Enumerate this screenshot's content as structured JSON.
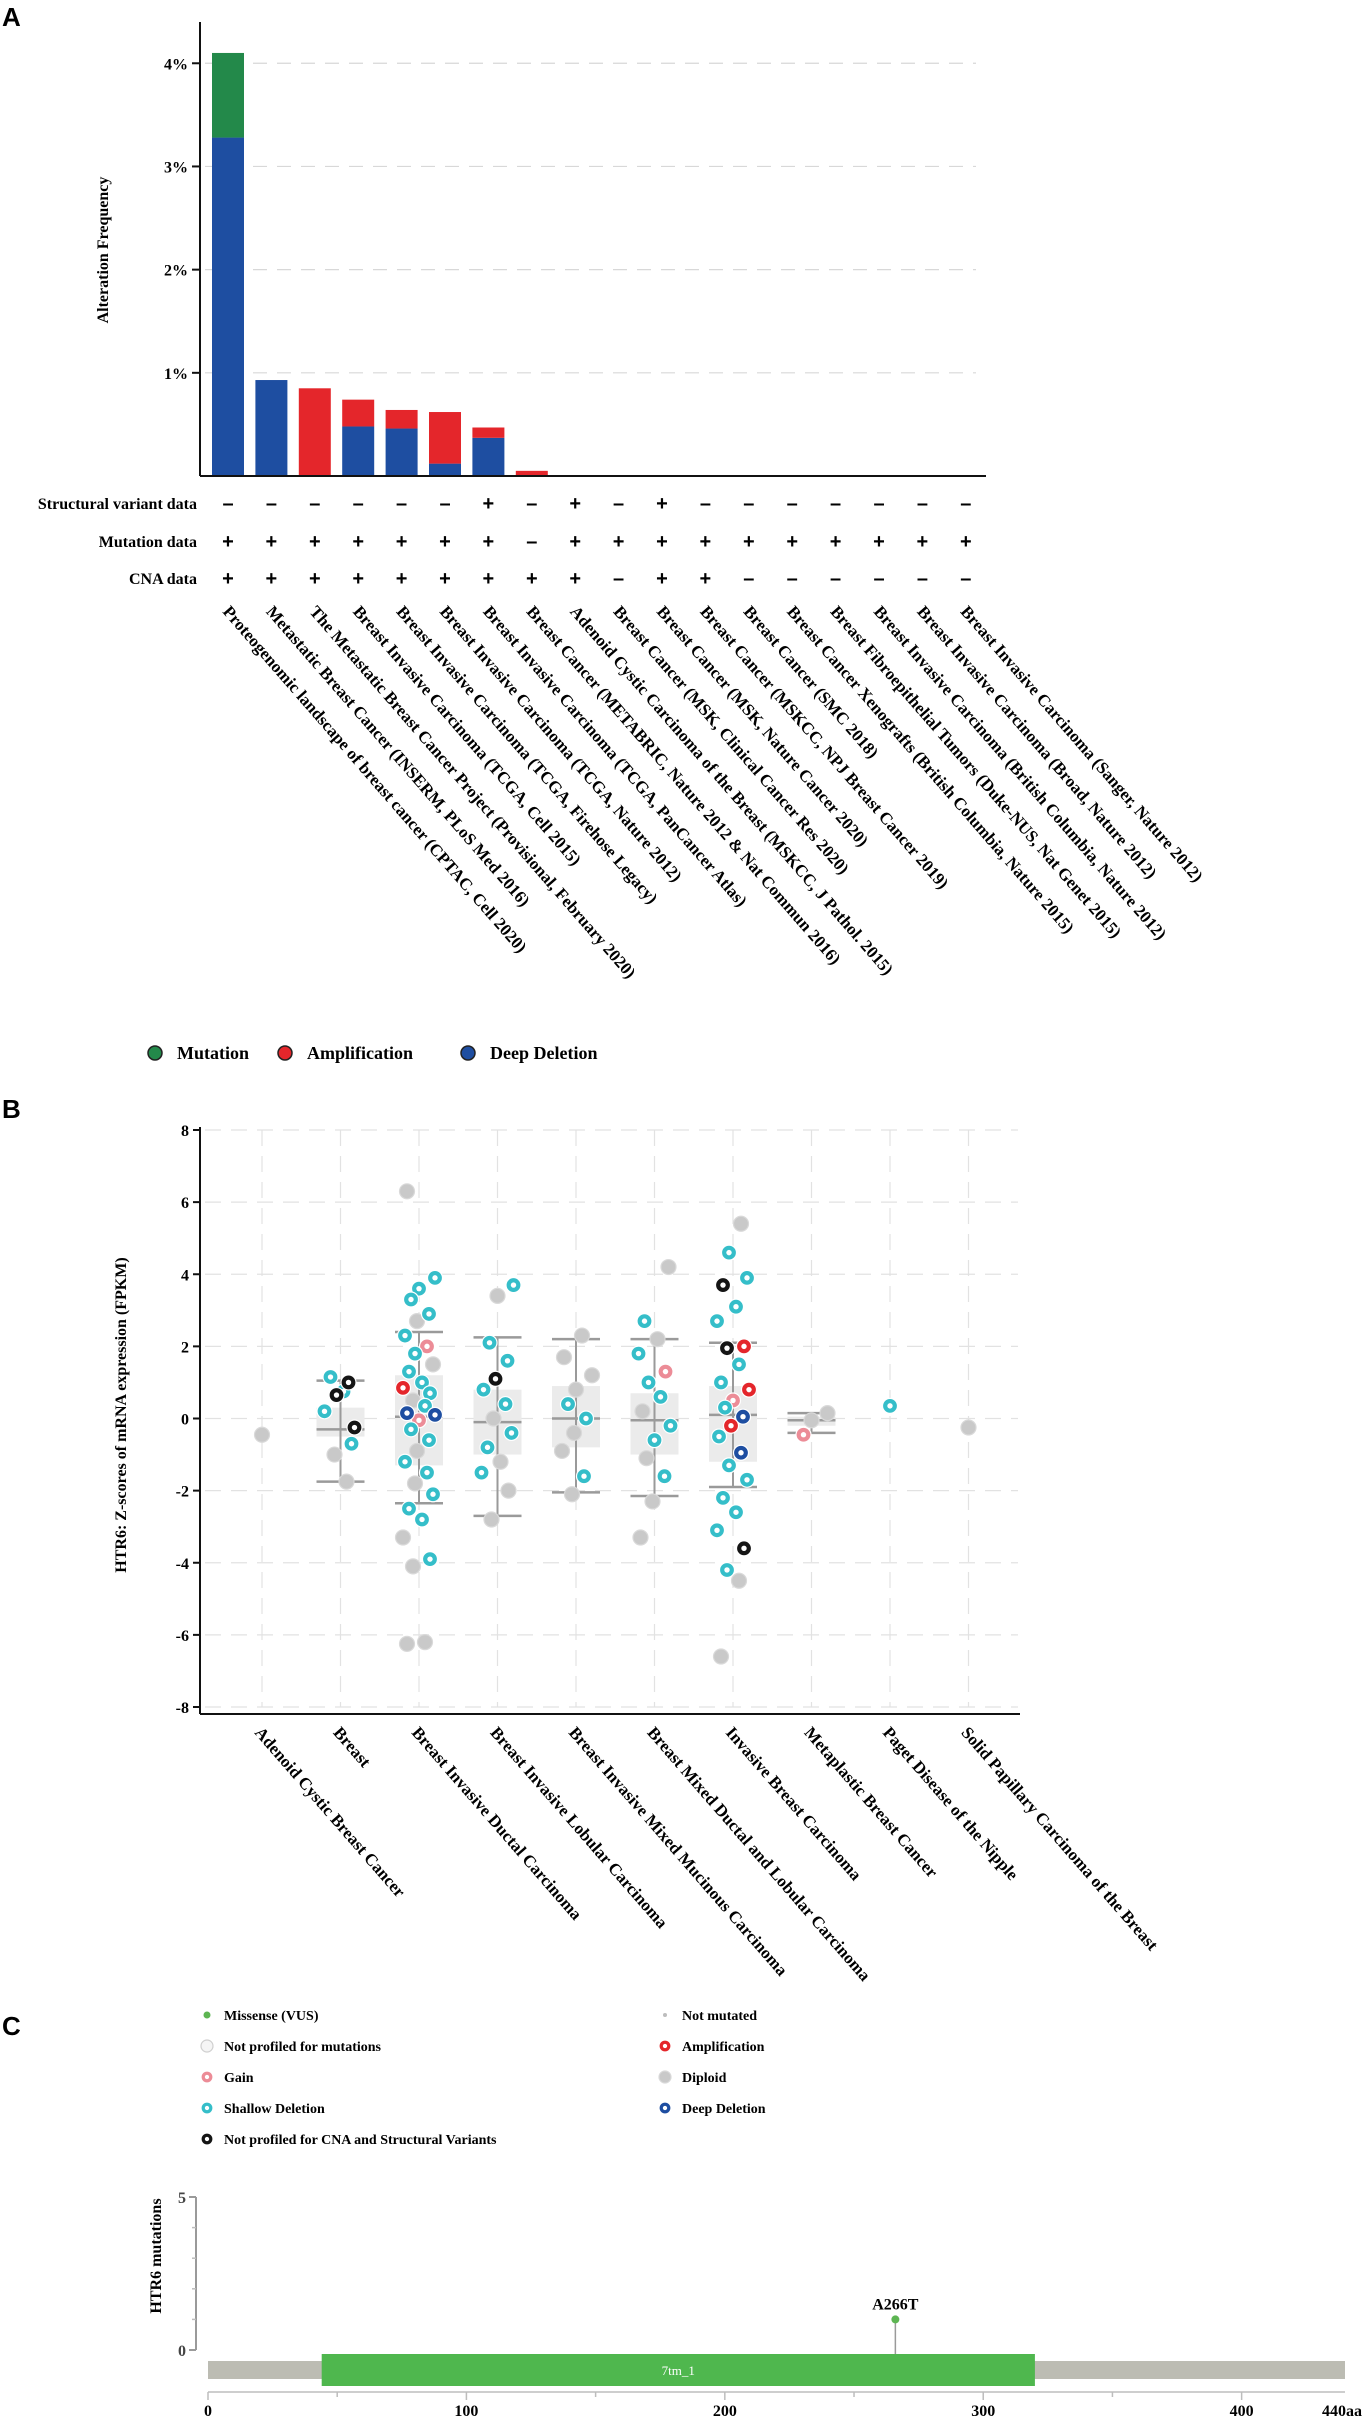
{
  "panels": {
    "a": "A",
    "b": "B",
    "c": "C"
  },
  "colors": {
    "mutation": "#23894a",
    "amplification": "#e4262b",
    "deep_deletion": "#1e4ea1",
    "gain": "#ec8c97",
    "shallow_deletion": "#35bec9",
    "diploid": "#c9c9c9",
    "not_profiled": "#f5f5f5",
    "not_profiled_cna": "#151515",
    "missense": "#5db552",
    "domain": "#4fb74e",
    "protein_bar": "#bcbcb3"
  },
  "chart_data": [
    {
      "id": "A",
      "type": "bar",
      "ylabel": "Alteration Frequency",
      "ylim": [
        0,
        4.4
      ],
      "yticks": [
        1,
        2,
        3,
        4
      ],
      "ytick_labels": [
        "1%",
        "2%",
        "3%",
        "4%"
      ],
      "categories": [
        "Proteogenomic landscape of breast cancer (CPTAC, Cell 2020)",
        "Metastatic Breast Cancer (INSERM, PLoS Med 2016)",
        "The Metastatic Breast Cancer Project (Provisional, February 2020)",
        "Breast Invasive Carcinoma (TCGA, Cell 2015)",
        "Breast Invasive Carcinoma (TCGA, Firehose Legacy)",
        "Breast Invasive Carcinoma (TCGA, Nature 2012)",
        "Breast Invasive Carcinoma (TCGA, PanCancer Atlas)",
        "Breast Cancer (METABRIC, Nature 2012 & Nat Commun 2016)",
        "Adenoid Cystic Carcinoma of the Breast (MSKCC, J Pathol. 2015)",
        "Breast Cancer (MSK, Clinical Cancer Res 2020)",
        "Breast Cancer (MSK, Nature Cancer 2020)",
        "Breast Cancer (MSKCC, NPJ Breast Cancer 2019)",
        "Breast Cancer (SMC 2018)",
        "Breast Cancer Xenografts (British Columbia, Nature 2015)",
        "Breast Fibroepithelial Tumors (Duke-NUS, Nat Genet 2015)",
        "Breast Invasive Carcinoma (British Columbia, Nature 2012)",
        "Breast Invasive Carcinoma (Broad, Nature 2012)",
        "Breast Invasive Carcinoma (Sanger, Nature 2012)"
      ],
      "series": [
        {
          "name": "Deep Deletion",
          "values": [
            3.28,
            0.93,
            0,
            0.48,
            0.46,
            0.12,
            0.37,
            0,
            0,
            0,
            0,
            0,
            0,
            0,
            0,
            0,
            0,
            0
          ]
        },
        {
          "name": "Amplification",
          "values": [
            0,
            0,
            0.85,
            0.26,
            0.18,
            0.5,
            0.1,
            0.05,
            0,
            0,
            0,
            0,
            0,
            0,
            0,
            0,
            0,
            0
          ]
        },
        {
          "name": "Mutation",
          "values": [
            0.82,
            0,
            0,
            0,
            0,
            0,
            0,
            0,
            0,
            0,
            0,
            0,
            0,
            0,
            0,
            0,
            0,
            0
          ]
        }
      ],
      "annotation_rows": [
        {
          "label": "Structural variant data",
          "values": [
            "-",
            "-",
            "-",
            "-",
            "-",
            "-",
            "+",
            "-",
            "+",
            "-",
            "+",
            "-",
            "-",
            "-",
            "-",
            "-",
            "-",
            "-"
          ]
        },
        {
          "label": "Mutation data",
          "values": [
            "+",
            "+",
            "+",
            "+",
            "+",
            "+",
            "+",
            "-",
            "+",
            "+",
            "+",
            "+",
            "+",
            "+",
            "+",
            "+",
            "+",
            "+"
          ]
        },
        {
          "label": "CNA data",
          "values": [
            "+",
            "+",
            "+",
            "+",
            "+",
            "+",
            "+",
            "+",
            "+",
            "-",
            "+",
            "+",
            "-",
            "-",
            "-",
            "-",
            "-",
            "-"
          ]
        }
      ],
      "legend": [
        "Mutation",
        "Amplification",
        "Deep Deletion"
      ]
    },
    {
      "id": "B",
      "type": "scatter",
      "ylabel": "HTR6: Z-scores of mRNA expression (FPKM)",
      "ylim": [
        -8,
        8
      ],
      "yticks": [
        -8,
        -6,
        -4,
        -2,
        0,
        2,
        4,
        6,
        8
      ],
      "ytick_labels": [
        "-8",
        "-6",
        "-4",
        "-2",
        "0",
        "2",
        "4",
        "6",
        "8"
      ],
      "categories": [
        "Adenoid Cystic Breast Cancer",
        "Breast",
        "Breast Invasive Ductal Carcinoma",
        "Breast Invasive Lobular Carcinoma",
        "Breast Invasive Mixed Mucinous Carcinoma",
        "Breast Mixed Ductal and Lobular Carcinoma",
        "Invasive Breast Carcinoma",
        "Metaplastic Breast Cancer",
        "Paget Disease of the Nipple",
        "Solid Papillary Carcinoma of the Breast"
      ],
      "box_stats": [
        null,
        {
          "whisker_low": -1.75,
          "q1": -0.5,
          "median": -0.3,
          "q3": 0.3,
          "whisker_high": 1.05
        },
        {
          "whisker_low": -2.35,
          "q1": -1.3,
          "median": 0.05,
          "q3": 1.2,
          "whisker_high": 2.4
        },
        {
          "whisker_low": -2.7,
          "q1": -1.0,
          "median": -0.1,
          "q3": 0.8,
          "whisker_high": 2.25
        },
        {
          "whisker_low": -2.05,
          "q1": -0.8,
          "median": 0.0,
          "q3": 0.9,
          "whisker_high": 2.2
        },
        {
          "whisker_low": -2.15,
          "q1": -1.0,
          "median": -0.05,
          "q3": 0.7,
          "whisker_high": 2.2
        },
        {
          "whisker_low": -1.9,
          "q1": -1.2,
          "median": 0.1,
          "q3": 0.9,
          "whisker_high": 2.1
        },
        {
          "whisker_low": -0.4,
          "q1": -0.2,
          "median": -0.05,
          "q3": 0.05,
          "whisker_high": 0.15
        },
        null,
        null
      ],
      "points": [
        {
          "cat": 0,
          "y": -0.45,
          "s": "diploid"
        },
        {
          "cat": 1,
          "y": 1.0,
          "s": "not_profiled_cna"
        },
        {
          "cat": 1,
          "y": 0.65,
          "s": "not_profiled_cna"
        },
        {
          "cat": 1,
          "y": -0.25,
          "s": "not_profiled_cna"
        },
        {
          "cat": 1,
          "y": 1.15,
          "s": "shallow_deletion"
        },
        {
          "cat": 1,
          "y": 0.75,
          "s": "shallow_deletion"
        },
        {
          "cat": 1,
          "y": 0.2,
          "s": "shallow_deletion"
        },
        {
          "cat": 1,
          "y": -0.7,
          "s": "shallow_deletion"
        },
        {
          "cat": 1,
          "y": -1.0,
          "s": "diploid"
        },
        {
          "cat": 1,
          "y": -1.75,
          "s": "diploid"
        },
        {
          "cat": 2,
          "y": 6.3,
          "s": "diploid"
        },
        {
          "cat": 2,
          "y": 3.9,
          "s": "shallow_deletion"
        },
        {
          "cat": 2,
          "y": 3.6,
          "s": "shallow_deletion"
        },
        {
          "cat": 2,
          "y": 3.3,
          "s": "shallow_deletion"
        },
        {
          "cat": 2,
          "y": 2.9,
          "s": "shallow_deletion"
        },
        {
          "cat": 2,
          "y": 2.7,
          "s": "diploid"
        },
        {
          "cat": 2,
          "y": 2.3,
          "s": "shallow_deletion"
        },
        {
          "cat": 2,
          "y": 2.0,
          "s": "gain"
        },
        {
          "cat": 2,
          "y": 1.8,
          "s": "shallow_deletion"
        },
        {
          "cat": 2,
          "y": 1.5,
          "s": "diploid"
        },
        {
          "cat": 2,
          "y": 1.3,
          "s": "shallow_deletion"
        },
        {
          "cat": 2,
          "y": 1.0,
          "s": "shallow_deletion"
        },
        {
          "cat": 2,
          "y": 0.85,
          "s": "amplification"
        },
        {
          "cat": 2,
          "y": 0.7,
          "s": "shallow_deletion"
        },
        {
          "cat": 2,
          "y": 0.5,
          "s": "diploid"
        },
        {
          "cat": 2,
          "y": 0.35,
          "s": "shallow_deletion"
        },
        {
          "cat": 2,
          "y": 0.15,
          "s": "deep_deletion"
        },
        {
          "cat": 2,
          "y": 0.1,
          "s": "deep_deletion"
        },
        {
          "cat": 2,
          "y": -0.05,
          "s": "gain"
        },
        {
          "cat": 2,
          "y": -0.3,
          "s": "shallow_deletion"
        },
        {
          "cat": 2,
          "y": -0.6,
          "s": "shallow_deletion"
        },
        {
          "cat": 2,
          "y": -0.9,
          "s": "diploid"
        },
        {
          "cat": 2,
          "y": -1.2,
          "s": "shallow_deletion"
        },
        {
          "cat": 2,
          "y": -1.5,
          "s": "shallow_deletion"
        },
        {
          "cat": 2,
          "y": -1.8,
          "s": "diploid"
        },
        {
          "cat": 2,
          "y": -2.1,
          "s": "shallow_deletion"
        },
        {
          "cat": 2,
          "y": -2.5,
          "s": "shallow_deletion"
        },
        {
          "cat": 2,
          "y": -2.8,
          "s": "shallow_deletion"
        },
        {
          "cat": 2,
          "y": -3.3,
          "s": "diploid"
        },
        {
          "cat": 2,
          "y": -3.9,
          "s": "shallow_deletion"
        },
        {
          "cat": 2,
          "y": -4.1,
          "s": "diploid"
        },
        {
          "cat": 2,
          "y": -6.2,
          "s": "diploid"
        },
        {
          "cat": 2,
          "y": -6.25,
          "s": "diploid"
        },
        {
          "cat": 3,
          "y": 3.7,
          "s": "shallow_deletion"
        },
        {
          "cat": 3,
          "y": 3.4,
          "s": "diploid"
        },
        {
          "cat": 3,
          "y": 2.1,
          "s": "shallow_deletion"
        },
        {
          "cat": 3,
          "y": 1.6,
          "s": "shallow_deletion"
        },
        {
          "cat": 3,
          "y": 1.1,
          "s": "not_profiled_cna"
        },
        {
          "cat": 3,
          "y": 0.8,
          "s": "shallow_deletion"
        },
        {
          "cat": 3,
          "y": 0.4,
          "s": "shallow_deletion"
        },
        {
          "cat": 3,
          "y": 0.0,
          "s": "diploid"
        },
        {
          "cat": 3,
          "y": -0.4,
          "s": "shallow_deletion"
        },
        {
          "cat": 3,
          "y": -0.8,
          "s": "shallow_deletion"
        },
        {
          "cat": 3,
          "y": -1.2,
          "s": "diploid"
        },
        {
          "cat": 3,
          "y": -1.5,
          "s": "shallow_deletion"
        },
        {
          "cat": 3,
          "y": -2.0,
          "s": "diploid"
        },
        {
          "cat": 3,
          "y": -2.8,
          "s": "diploid"
        },
        {
          "cat": 4,
          "y": 2.3,
          "s": "diploid"
        },
        {
          "cat": 4,
          "y": 1.7,
          "s": "diploid"
        },
        {
          "cat": 4,
          "y": 1.2,
          "s": "diploid"
        },
        {
          "cat": 4,
          "y": 0.8,
          "s": "diploid"
        },
        {
          "cat": 4,
          "y": 0.4,
          "s": "shallow_deletion"
        },
        {
          "cat": 4,
          "y": 0.0,
          "s": "shallow_deletion"
        },
        {
          "cat": 4,
          "y": -0.4,
          "s": "diploid"
        },
        {
          "cat": 4,
          "y": -0.9,
          "s": "diploid"
        },
        {
          "cat": 4,
          "y": -1.6,
          "s": "shallow_deletion"
        },
        {
          "cat": 4,
          "y": -2.1,
          "s": "diploid"
        },
        {
          "cat": 5,
          "y": 4.2,
          "s": "diploid"
        },
        {
          "cat": 5,
          "y": 2.7,
          "s": "shallow_deletion"
        },
        {
          "cat": 5,
          "y": 2.2,
          "s": "diploid"
        },
        {
          "cat": 5,
          "y": 1.8,
          "s": "shallow_deletion"
        },
        {
          "cat": 5,
          "y": 1.3,
          "s": "gain"
        },
        {
          "cat": 5,
          "y": 1.0,
          "s": "shallow_deletion"
        },
        {
          "cat": 5,
          "y": 0.6,
          "s": "shallow_deletion"
        },
        {
          "cat": 5,
          "y": 0.2,
          "s": "diploid"
        },
        {
          "cat": 5,
          "y": -0.2,
          "s": "shallow_deletion"
        },
        {
          "cat": 5,
          "y": -0.6,
          "s": "shallow_deletion"
        },
        {
          "cat": 5,
          "y": -1.1,
          "s": "diploid"
        },
        {
          "cat": 5,
          "y": -1.6,
          "s": "shallow_deletion"
        },
        {
          "cat": 5,
          "y": -2.3,
          "s": "diploid"
        },
        {
          "cat": 5,
          "y": -3.3,
          "s": "diploid"
        },
        {
          "cat": 6,
          "y": 5.4,
          "s": "diploid"
        },
        {
          "cat": 6,
          "y": 4.6,
          "s": "shallow_deletion"
        },
        {
          "cat": 6,
          "y": 3.9,
          "s": "shallow_deletion"
        },
        {
          "cat": 6,
          "y": 3.7,
          "s": "not_profiled_cna"
        },
        {
          "cat": 6,
          "y": 3.1,
          "s": "shallow_deletion"
        },
        {
          "cat": 6,
          "y": 2.7,
          "s": "shallow_deletion"
        },
        {
          "cat": 6,
          "y": 2.0,
          "s": "amplification"
        },
        {
          "cat": 6,
          "y": 1.95,
          "s": "not_profiled_cna"
        },
        {
          "cat": 6,
          "y": 1.5,
          "s": "shallow_deletion"
        },
        {
          "cat": 6,
          "y": 1.0,
          "s": "shallow_deletion"
        },
        {
          "cat": 6,
          "y": 0.8,
          "s": "amplification"
        },
        {
          "cat": 6,
          "y": 0.5,
          "s": "gain"
        },
        {
          "cat": 6,
          "y": 0.3,
          "s": "shallow_deletion"
        },
        {
          "cat": 6,
          "y": 0.05,
          "s": "deep_deletion"
        },
        {
          "cat": 6,
          "y": -0.2,
          "s": "amplification"
        },
        {
          "cat": 6,
          "y": -0.5,
          "s": "shallow_deletion"
        },
        {
          "cat": 6,
          "y": -0.95,
          "s": "deep_deletion"
        },
        {
          "cat": 6,
          "y": -1.3,
          "s": "shallow_deletion"
        },
        {
          "cat": 6,
          "y": -1.7,
          "s": "shallow_deletion"
        },
        {
          "cat": 6,
          "y": -2.2,
          "s": "shallow_deletion"
        },
        {
          "cat": 6,
          "y": -2.6,
          "s": "shallow_deletion"
        },
        {
          "cat": 6,
          "y": -3.1,
          "s": "shallow_deletion"
        },
        {
          "cat": 6,
          "y": -3.6,
          "s": "not_profiled_cna"
        },
        {
          "cat": 6,
          "y": -4.2,
          "s": "shallow_deletion"
        },
        {
          "cat": 6,
          "y": -4.5,
          "s": "diploid"
        },
        {
          "cat": 6,
          "y": -6.6,
          "s": "diploid"
        },
        {
          "cat": 7,
          "y": 0.15,
          "s": "diploid"
        },
        {
          "cat": 7,
          "y": -0.05,
          "s": "diploid"
        },
        {
          "cat": 7,
          "y": -0.45,
          "s": "gain"
        },
        {
          "cat": 8,
          "y": 0.35,
          "s": "shallow_deletion"
        },
        {
          "cat": 9,
          "y": -0.25,
          "s": "diploid"
        }
      ],
      "legend": [
        {
          "label": "Missense (VUS)",
          "s": "missense"
        },
        {
          "label": "Not mutated",
          "s": "not_mutated"
        },
        {
          "label": "Not profiled for mutations",
          "s": "not_profiled"
        },
        {
          "label": "Amplification",
          "s": "amplification"
        },
        {
          "label": "Gain",
          "s": "gain"
        },
        {
          "label": "Diploid",
          "s": "diploid"
        },
        {
          "label": "Shallow Deletion",
          "s": "shallow_deletion"
        },
        {
          "label": "Deep Deletion",
          "s": "deep_deletion"
        },
        {
          "label": "Not profiled for CNA and Structural Variants",
          "s": "not_profiled_cna"
        }
      ]
    },
    {
      "id": "C",
      "type": "lollipop",
      "ylabel": "HTR6 mutations",
      "ylim": [
        0,
        5
      ],
      "yticks": [
        0,
        5
      ],
      "ytick_labels": [
        "0",
        "5"
      ],
      "protein_length": 440,
      "xticks": [
        0,
        100,
        200,
        300,
        400
      ],
      "xtick_labels": [
        "0",
        "100",
        "200",
        "300",
        "400"
      ],
      "end_label": "440aa",
      "domains": [
        {
          "name": "7tm_1",
          "start": 44,
          "end": 320
        }
      ],
      "mutations": [
        {
          "label": "A266T",
          "position": 266,
          "count": 1
        }
      ]
    }
  ]
}
